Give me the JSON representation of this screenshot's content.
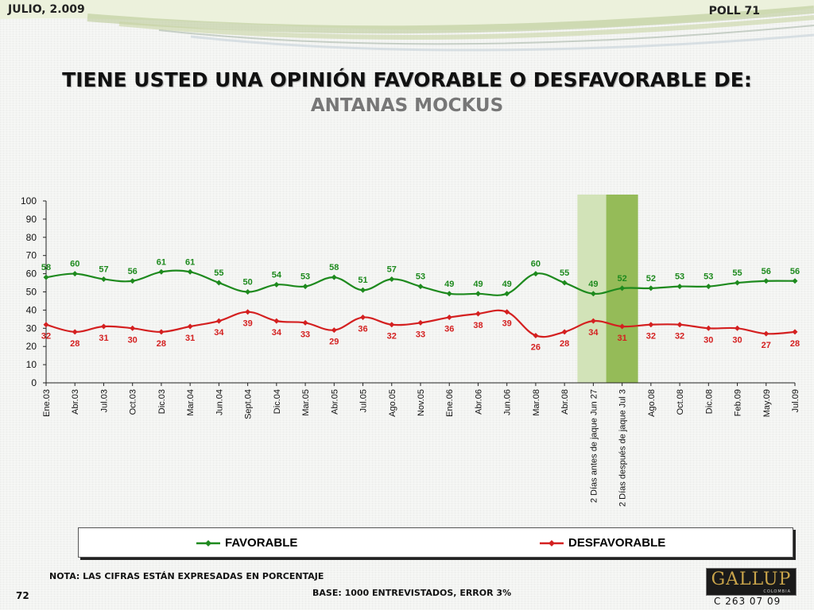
{
  "header": {
    "date": "JULIO, 2.009",
    "poll": "POLL 71"
  },
  "title": "TIENE USTED UNA OPINIÓN FAVORABLE O DESFAVORABLE DE:",
  "subtitle": "ANTANAS MOCKUS",
  "colors": {
    "favorable": "#1e8a1e",
    "desfavorable": "#d42020",
    "highlight_light": "#d2e3b8",
    "highlight_dark": "#95bb58"
  },
  "chart_data": {
    "type": "line",
    "categories": [
      "Ene.03",
      "Abr.03",
      "Jul.03",
      "Oct.03",
      "Dic.03",
      "Mar.04",
      "Jun.04",
      "Sept.04",
      "Dic.04",
      "Mar.05",
      "Abr.05",
      "Jul.05",
      "Ago.05",
      "Nov.05",
      "Ene.06",
      "Abr.06",
      "Jun.06",
      "Mar.08",
      "Abr.08",
      "2 Días antes de jaque Jun 27",
      "2 Días después de jaque Jul 3",
      "Ago.08",
      "Oct.08",
      "Dic.08",
      "Feb.09",
      "May.09",
      "Jul.09"
    ],
    "series": [
      {
        "name": "FAVORABLE",
        "values": [
          58,
          60,
          57,
          56,
          61,
          61,
          55,
          50,
          54,
          53,
          58,
          51,
          57,
          53,
          49,
          49,
          49,
          60,
          55,
          49,
          52,
          52,
          53,
          53,
          55,
          56,
          56
        ]
      },
      {
        "name": "DESFAVORABLE",
        "values": [
          32,
          28,
          31,
          30,
          28,
          31,
          34,
          39,
          34,
          33,
          29,
          36,
          32,
          33,
          36,
          38,
          39,
          26,
          28,
          34,
          31,
          32,
          32,
          30,
          30,
          27,
          28
        ]
      }
    ],
    "highlighted_categories": [
      "2 Días antes de jaque Jun 27",
      "2 Días después de jaque Jul 3"
    ],
    "ylim": [
      0,
      100
    ],
    "yticks": [
      0,
      10,
      20,
      30,
      40,
      50,
      60,
      70,
      80,
      90,
      100
    ],
    "title": "",
    "xlabel": "",
    "ylabel": "",
    "legend": "bottom"
  },
  "legend": {
    "favorable": "FAVORABLE",
    "desfavorable": "DESFAVORABLE"
  },
  "footer": {
    "note": "NOTA: LAS CIFRAS ESTÁN EXPRESADAS EN PORCENTAJE",
    "base": "BASE: 1000 ENTREVISTADOS, ERROR 3%",
    "page": "72",
    "logo": "GALLUP",
    "logo_sub": "COLOMBIA",
    "code": "C 263 07 09"
  }
}
